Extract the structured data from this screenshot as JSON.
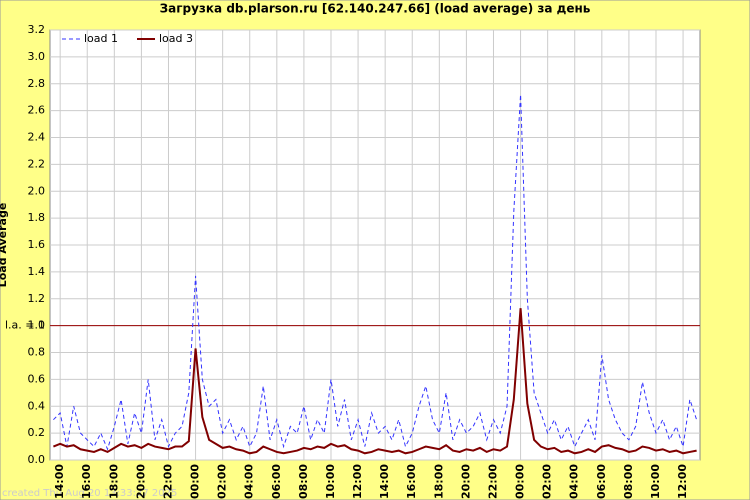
{
  "chart_data": {
    "type": "line",
    "title": "Загрузка db.plarson.ru [62.140.247.66] (load average) за день",
    "y_label": "Load Average",
    "footer": "created Thu Aug 20 13:33:27 2025",
    "legend_position": "upper left",
    "grid": true,
    "reference_line": {
      "value": 1,
      "label": "l.a. = 1",
      "color": "#990000"
    },
    "categories": [
      null,
      "14:00",
      null,
      null,
      null,
      "16:00",
      null,
      null,
      null,
      "18:00",
      null,
      null,
      null,
      "20:00",
      null,
      null,
      null,
      "22:00",
      null,
      null,
      null,
      "00:00",
      null,
      null,
      null,
      "02:00",
      null,
      null,
      null,
      "04:00",
      null,
      null,
      null,
      "06:00",
      null,
      null,
      null,
      "08:00",
      null,
      null,
      null,
      "10:00",
      null,
      null,
      null,
      "12:00",
      null,
      null,
      null,
      "14:00",
      null,
      null,
      null,
      "16:00",
      null,
      null,
      null,
      "18:00",
      null,
      null,
      null,
      "20:00",
      null,
      null,
      null,
      "22:00",
      null,
      null,
      null,
      "00:00",
      null,
      null,
      null,
      "02:00",
      null,
      null,
      null,
      "04:00",
      null,
      null,
      null,
      "06:00",
      null,
      null,
      null,
      "08:00",
      null,
      null,
      null,
      "10:00",
      null,
      null,
      null,
      "12:00",
      null,
      null
    ],
    "series": [
      {
        "name": "load 1",
        "color": "#3333ff",
        "dashed": true,
        "values": [
          0.3,
          0.35,
          0.1,
          0.4,
          0.2,
          0.15,
          0.1,
          0.2,
          0.08,
          0.25,
          0.45,
          0.12,
          0.35,
          0.2,
          0.6,
          0.15,
          0.3,
          0.1,
          0.2,
          0.25,
          0.5,
          1.37,
          0.6,
          0.4,
          0.45,
          0.2,
          0.3,
          0.15,
          0.25,
          0.1,
          0.2,
          0.55,
          0.15,
          0.3,
          0.1,
          0.25,
          0.2,
          0.4,
          0.15,
          0.3,
          0.2,
          0.6,
          0.25,
          0.45,
          0.15,
          0.3,
          0.1,
          0.35,
          0.2,
          0.25,
          0.15,
          0.3,
          0.1,
          0.2,
          0.4,
          0.55,
          0.3,
          0.2,
          0.5,
          0.15,
          0.3,
          0.2,
          0.25,
          0.35,
          0.15,
          0.3,
          0.2,
          0.4,
          1.85,
          2.72,
          1.2,
          0.5,
          0.35,
          0.2,
          0.3,
          0.15,
          0.25,
          0.1,
          0.2,
          0.3,
          0.15,
          0.78,
          0.45,
          0.3,
          0.2,
          0.15,
          0.25,
          0.58,
          0.35,
          0.2,
          0.3,
          0.15,
          0.25,
          0.1,
          0.45,
          0.3
        ]
      },
      {
        "name": "load 3",
        "color": "#800000",
        "dashed": false,
        "values": [
          0.1,
          0.12,
          0.1,
          0.11,
          0.08,
          0.07,
          0.06,
          0.08,
          0.06,
          0.09,
          0.12,
          0.1,
          0.11,
          0.09,
          0.12,
          0.1,
          0.09,
          0.08,
          0.1,
          0.1,
          0.14,
          0.83,
          0.32,
          0.15,
          0.12,
          0.09,
          0.1,
          0.08,
          0.07,
          0.05,
          0.06,
          0.1,
          0.08,
          0.06,
          0.05,
          0.06,
          0.07,
          0.09,
          0.08,
          0.1,
          0.09,
          0.12,
          0.1,
          0.11,
          0.08,
          0.07,
          0.05,
          0.06,
          0.08,
          0.07,
          0.06,
          0.07,
          0.05,
          0.06,
          0.08,
          0.1,
          0.09,
          0.08,
          0.11,
          0.07,
          0.06,
          0.08,
          0.07,
          0.09,
          0.06,
          0.08,
          0.07,
          0.1,
          0.45,
          1.13,
          0.42,
          0.15,
          0.1,
          0.08,
          0.09,
          0.06,
          0.07,
          0.05,
          0.06,
          0.08,
          0.06,
          0.1,
          0.11,
          0.09,
          0.08,
          0.06,
          0.07,
          0.1,
          0.09,
          0.07,
          0.08,
          0.06,
          0.07,
          0.05,
          0.06,
          0.07
        ]
      }
    ],
    "ylim": [
      0,
      3.2
    ],
    "yticks": [
      {
        "value": 0,
        "label": "0.0"
      },
      0.2,
      0.4,
      0.6,
      0.8,
      {
        "value": 1,
        "label": "1.0"
      },
      1.2,
      1.4,
      1.6,
      1.8,
      {
        "value": 2,
        "label": "2.0"
      },
      2.2,
      2.4,
      2.6,
      2.8,
      {
        "value": 3,
        "label": "3.0"
      },
      3.2
    ]
  }
}
